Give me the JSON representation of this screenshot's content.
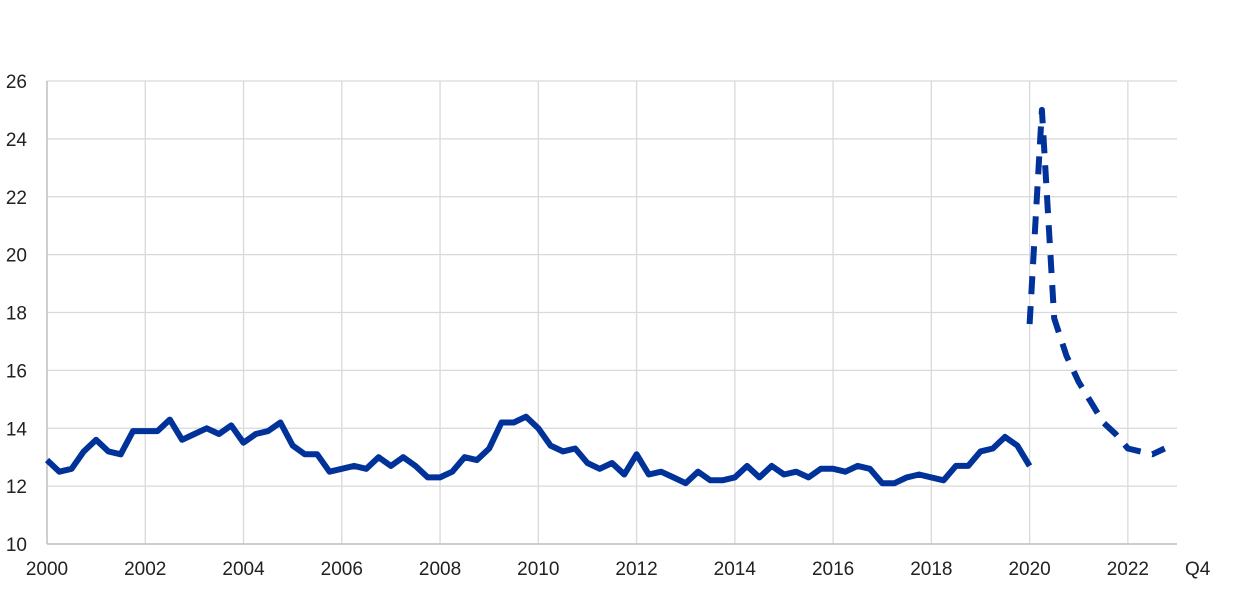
{
  "chart_data": {
    "type": "line",
    "title": "",
    "xlabel": "",
    "ylabel": "",
    "xlim": [
      2000,
      2023
    ],
    "ylim": [
      10,
      26
    ],
    "y_ticks": [
      10,
      12,
      14,
      16,
      18,
      20,
      22,
      24,
      26
    ],
    "x_ticks": [
      2000,
      2002,
      2004,
      2006,
      2008,
      2010,
      2012,
      2014,
      2016,
      2018,
      2020,
      2022
    ],
    "x_end_label": "Q4",
    "grid": true,
    "legend": "none",
    "colors": {
      "series": "#003299",
      "grid": "#d9d9d9",
      "axis": "#bfbfbf"
    },
    "series": [
      {
        "style": "solid",
        "x": [
          2000.0,
          2000.25,
          2000.5,
          2000.75,
          2001.0,
          2001.25,
          2001.5,
          2001.75,
          2002.0,
          2002.25,
          2002.5,
          2002.75,
          2003.0,
          2003.25,
          2003.5,
          2003.75,
          2004.0,
          2004.25,
          2004.5,
          2004.75,
          2005.0,
          2005.25,
          2005.5,
          2005.75,
          2006.0,
          2006.25,
          2006.5,
          2006.75,
          2007.0,
          2007.25,
          2007.5,
          2007.75,
          2008.0,
          2008.25,
          2008.5,
          2008.75,
          2009.0,
          2009.25,
          2009.5,
          2009.75,
          2010.0,
          2010.25,
          2010.5,
          2010.75,
          2011.0,
          2011.25,
          2011.5,
          2011.75,
          2012.0,
          2012.25,
          2012.5,
          2012.75,
          2013.0,
          2013.25,
          2013.5,
          2013.75,
          2014.0,
          2014.25,
          2014.5,
          2014.75,
          2015.0,
          2015.25,
          2015.5,
          2015.75,
          2016.0,
          2016.25,
          2016.5,
          2016.75,
          2017.0,
          2017.25,
          2017.5,
          2017.75,
          2018.0,
          2018.25,
          2018.5,
          2018.75,
          2019.0,
          2019.25,
          2019.5,
          2019.75,
          2020.0
        ],
        "values": [
          12.9,
          12.5,
          12.6,
          13.2,
          13.6,
          13.2,
          13.1,
          13.9,
          13.9,
          13.9,
          14.3,
          13.6,
          13.8,
          14.0,
          13.8,
          14.1,
          13.5,
          13.8,
          13.9,
          14.2,
          13.4,
          13.1,
          13.1,
          12.5,
          12.6,
          12.7,
          12.6,
          13.0,
          12.7,
          13.0,
          12.7,
          12.3,
          12.3,
          12.5,
          13.0,
          12.9,
          13.3,
          14.2,
          14.2,
          14.4,
          14.0,
          13.4,
          13.2,
          13.3,
          12.8,
          12.6,
          12.8,
          12.4,
          13.1,
          12.4,
          12.5,
          12.3,
          12.1,
          12.5,
          12.2,
          12.2,
          12.3,
          12.7,
          12.3,
          12.7,
          12.4,
          12.5,
          12.3,
          12.6,
          12.6,
          12.5,
          12.7,
          12.6,
          12.1,
          12.1,
          12.3,
          12.4,
          12.3,
          12.2,
          12.7,
          12.7,
          13.2,
          13.3,
          13.7,
          13.4,
          12.7
        ]
      },
      {
        "style": "dashed",
        "x": [
          2020.0,
          2020.25,
          2020.5,
          2020.75,
          2021.0,
          2021.25,
          2021.5,
          2021.75,
          2022.0,
          2022.25,
          2022.5,
          2022.75
        ],
        "values": [
          17.6,
          25.0,
          17.8,
          16.5,
          15.6,
          14.9,
          14.2,
          13.8,
          13.3,
          13.2,
          13.1,
          13.3
        ]
      }
    ]
  }
}
